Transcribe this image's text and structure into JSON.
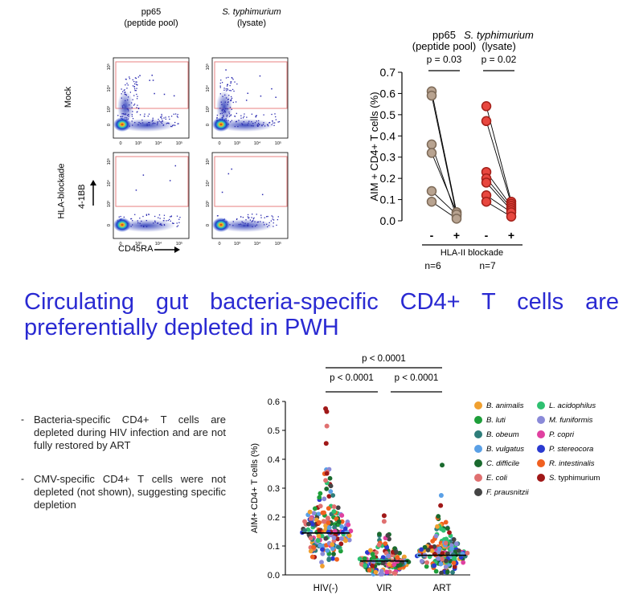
{
  "flow": {
    "col_headers": [
      {
        "line1": "pp65",
        "line2": "(peptide pool)"
      },
      {
        "line1": "S. typhimurium",
        "line2": "(lysate)"
      }
    ],
    "row_labels": [
      "Mock",
      "HLA-blockade"
    ],
    "y_axis_label": "4-1BB",
    "x_axis_label": "CD45RA",
    "y_ticks": [
      "10⁵",
      "10⁴",
      "10³",
      "0"
    ],
    "x_ticks": [
      "0",
      "10³",
      "10⁴",
      "10⁵"
    ]
  },
  "title": "Circulating gut bacteria-specific CD4+ T cells are preferentially depleted in PWH",
  "bullets": [
    "Bacteria-specific CD4+ T cells are depleted during HIV infection and are not fully restored by ART",
    "CMV-specific CD4+ T cells were not depleted (not shown), suggesting specific depletion"
  ],
  "chart_data": [
    {
      "type": "line",
      "ylabel": "AIM + CD4+ T cells (%)",
      "ylim": [
        0,
        0.7
      ],
      "y_ticks": [
        "0.0",
        "0.1",
        "0.2",
        "0.3",
        "0.4",
        "0.5",
        "0.6",
        "0.7"
      ],
      "x_ticks": [
        "-",
        "+",
        "-",
        "+"
      ],
      "bracket_label": "HLA-II blockade",
      "groups": [
        {
          "header1": "pp65",
          "header2": "(peptide pool)",
          "p": "p = 0.03",
          "n": "n=6",
          "color": "#b8a390",
          "edge": "#7d6a58",
          "pairs": [
            [
              0.61,
              0.04
            ],
            [
              0.59,
              0.03
            ],
            [
              0.36,
              0.02
            ],
            [
              0.32,
              0.04
            ],
            [
              0.14,
              0.03
            ],
            [
              0.09,
              0.01
            ]
          ]
        },
        {
          "header1": "S. typhimurium",
          "header2": "(lysate)",
          "p": "p = 0.02",
          "n": "n=7",
          "color": "#e8473f",
          "edge": "#a32019",
          "pairs": [
            [
              0.54,
              0.09
            ],
            [
              0.47,
              0.08
            ],
            [
              0.23,
              0.07
            ],
            [
              0.2,
              0.06
            ],
            [
              0.18,
              0.05
            ],
            [
              0.12,
              0.04
            ],
            [
              0.09,
              0.02
            ]
          ]
        }
      ]
    },
    {
      "type": "scatter",
      "ylabel": "AIM+ CD4+ T cells (%)",
      "ylim": [
        0,
        0.6
      ],
      "y_ticks": [
        "0.0",
        "0.1",
        "0.2",
        "0.3",
        "0.4",
        "0.5",
        "0.6"
      ],
      "categories": [
        "HIV(-)",
        "VIR",
        "ART"
      ],
      "medians": [
        0.145,
        0.048,
        0.068
      ],
      "comparisons": [
        {
          "from": 0,
          "to": 2,
          "p": "p < 0.0001"
        },
        {
          "from": 0,
          "to": 1,
          "p": "p < 0.0001"
        },
        {
          "from": 1,
          "to": 2,
          "p": "p < 0.0001"
        }
      ],
      "series": [
        {
          "name": "B. animalis",
          "color": "#f0a030"
        },
        {
          "name": "B. luti",
          "color": "#1e9e3a"
        },
        {
          "name": "B. obeum",
          "color": "#2e7d7a"
        },
        {
          "name": "B. vulgatus",
          "color": "#5aa0e6"
        },
        {
          "name": "C. difficile",
          "color": "#1a6a2e"
        },
        {
          "name": "E. coli",
          "color": "#e07070"
        },
        {
          "name": "F. prausnitzii",
          "color": "#444444"
        },
        {
          "name": "L. acidophilus",
          "color": "#2ec070"
        },
        {
          "name": "M. funiformis",
          "color": "#8a8ad8"
        },
        {
          "name": "P. copri",
          "color": "#e040a0"
        },
        {
          "name": "P. stereocora",
          "color": "#2a3ad0"
        },
        {
          "name": "R. intestinalis",
          "color": "#f06020"
        },
        {
          "name": "S. typhimurium",
          "color": "#a01818"
        }
      ],
      "notable_points": [
        {
          "group": "HIV(-)",
          "y": 0.575,
          "series": "S. typhimurium"
        },
        {
          "group": "HIV(-)",
          "y": 0.565,
          "series": "S. typhimurium"
        },
        {
          "group": "HIV(-)",
          "y": 0.515,
          "series": "E. coli"
        },
        {
          "group": "HIV(-)",
          "y": 0.455,
          "series": "S. typhimurium"
        },
        {
          "group": "HIV(-)",
          "y": 0.35,
          "series": "R. intestinalis"
        },
        {
          "group": "VIR",
          "y": 0.205,
          "series": "S. typhimurium"
        },
        {
          "group": "VIR",
          "y": 0.185,
          "series": "E. coli"
        },
        {
          "group": "ART",
          "y": 0.38,
          "series": "C. difficile"
        },
        {
          "group": "ART",
          "y": 0.275,
          "series": "B. vulgatus"
        },
        {
          "group": "ART",
          "y": 0.24,
          "series": "S. typhimurium"
        }
      ]
    }
  ]
}
